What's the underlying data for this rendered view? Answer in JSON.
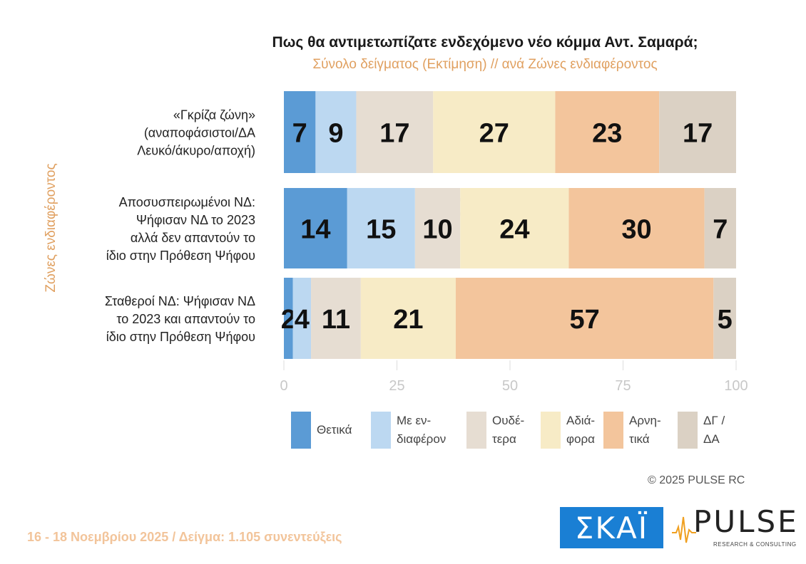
{
  "title": "Πως θα αντιμετωπίζατε ενδεχόμενο νέο κόμμα Αντ. Σαμαρά;",
  "subtitle": "Σύνολο δείγματος   (Εκτίμηση) // ανά Ζώνες ενδιαφέροντος",
  "chart_data": {
    "type": "bar",
    "orientation": "horizontal",
    "stacked": true,
    "ylabel": "Ζώνες ενδιαφέροντος",
    "xlim": [
      0,
      100
    ],
    "xticks": [
      "0",
      "25",
      "50",
      "75",
      "100"
    ],
    "categories": [
      "«Γκρίζα ζώνη»\n(αναποφάσιστοι/ΔΑ\nΛευκό/άκυρο/αποχή)",
      "Αποσυσπειρωμένοι ΝΔ:\nΨήφισαν ΝΔ το 2023\nαλλά δεν απαντούν το\nίδιο στην Πρόθεση Ψήφου",
      "Σταθεροί ΝΔ: Ψήφισαν ΝΔ\nτο 2023 και απαντούν το\nίδιο στην Πρόθεση Ψήφου"
    ],
    "series": [
      {
        "name": "Θετικά",
        "color": "#5b9bd5",
        "values": [
          7,
          14,
          2
        ]
      },
      {
        "name": "Με εν-\nδιαφέρον",
        "color": "#bcd8f1",
        "values": [
          9,
          15,
          4
        ]
      },
      {
        "name": "Ουδέ-\nτερα",
        "color": "#e6ddd2",
        "values": [
          17,
          10,
          11
        ]
      },
      {
        "name": "Αδιά-\nφορα",
        "color": "#f7ebc6",
        "values": [
          27,
          24,
          21
        ]
      },
      {
        "name": "Αρνη-\nτικά",
        "color": "#f3c59c",
        "values": [
          23,
          30,
          57
        ]
      },
      {
        "name": "ΔΓ /\nΔΑ",
        "color": "#dbd1c4",
        "values": [
          17,
          7,
          5
        ]
      }
    ],
    "data_labels": [
      [
        "7",
        "9",
        "17",
        "27",
        "23",
        "17"
      ],
      [
        "14",
        "15",
        "10",
        "24",
        "30",
        "7"
      ],
      [
        "2",
        "4",
        "11",
        "21",
        "57",
        "5"
      ]
    ],
    "watermark": "PULSE",
    "grid": false,
    "legend": "bottom"
  },
  "copyright": "©  2025  PULSE RC",
  "footer": "16 - 18 Νοεμβρίου 2025  /  Δείγμα:  1.105 συνεντεύξεις",
  "logos": {
    "skai": "ΣΚΑΪ",
    "pulse": "PULSE",
    "pulse_sub": "RESEARCH & CONSULTING"
  }
}
